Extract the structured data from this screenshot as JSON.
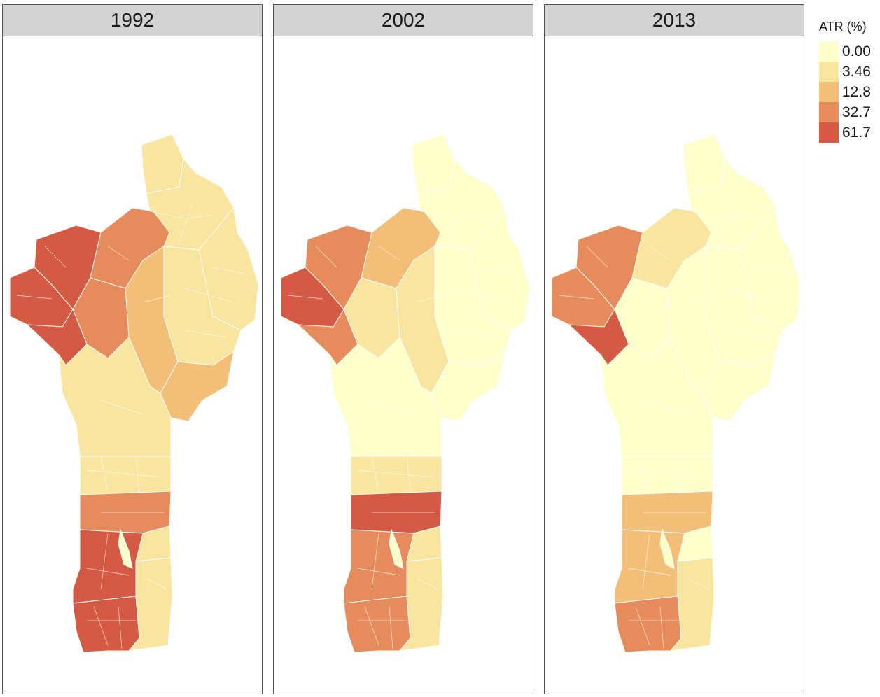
{
  "panels": [
    {
      "year": "1992",
      "levels": {
        "north_tip": 1,
        "north_east": 1,
        "north_east_band": 1,
        "east_center": 1,
        "northwest_block": 4,
        "atacora_east": 3,
        "borgou_center": 2,
        "center_right": 2,
        "donga": 3,
        "west_band": 4,
        "west_lower": 4,
        "collines_north": 1,
        "collines_center": 1,
        "zou": 3,
        "zou_east": 1,
        "atlantique": 4,
        "atlantique_lake": 0,
        "littoral": 4,
        "oueme": 1
      }
    },
    {
      "year": "2002",
      "levels": {
        "north_tip": 0,
        "north_east": 0,
        "north_east_band": 0,
        "east_center": 0,
        "northwest_block": 3,
        "atacora_east": 2,
        "borgou_center": 1,
        "center_right": 0,
        "donga": 1,
        "west_band": 4,
        "west_lower": 3,
        "collines_north": 0,
        "collines_center": 1,
        "zou": 4,
        "zou_east": 1,
        "atlantique": 3,
        "atlantique_lake": 0,
        "littoral": 3,
        "oueme": 1
      }
    },
    {
      "year": "2013",
      "levels": {
        "north_tip": 0,
        "north_east": 0,
        "north_east_band": 0,
        "east_center": 0,
        "northwest_block": 3,
        "atacora_east": 1,
        "borgou_center": 0,
        "center_right": 0,
        "donga": 0,
        "west_band": 3,
        "west_lower": 4,
        "collines_north": 0,
        "collines_center": 0,
        "zou": 2,
        "zou_east": 0,
        "atlantique": 2,
        "atlantique_lake": 0,
        "littoral": 3,
        "oueme": 1
      }
    }
  ],
  "legend": {
    "title": "ATR (%)",
    "entries": [
      {
        "label": "0.00",
        "color": "#ffffcc"
      },
      {
        "label": "3.46",
        "color": "#f8e5a0"
      },
      {
        "label": "12.8",
        "color": "#f3bf78"
      },
      {
        "label": "32.7",
        "color": "#e68b5b"
      },
      {
        "label": "61.7",
        "color": "#d45a43"
      }
    ]
  }
}
